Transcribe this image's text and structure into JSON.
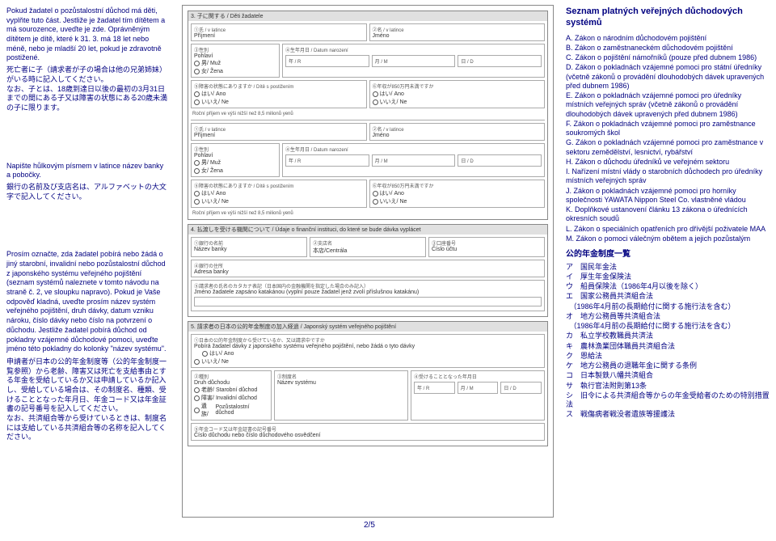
{
  "left": {
    "block1_cz": "Pokud žadatel o pozůstalostní důchod má děti, vyplňte tuto část. Jestliže je žadatel tím dítětem a má sourozence, uveďte je zde. Oprávněným dítětem je dítě, které k 31. 3. má 18 let nebo méně, nebo je mladší 20 let, pokud je zdravotně postižené.",
    "block1_jp": "死亡者に子（請求者が子の場合は他の兄弟姉妹）がいる時に記入してください。\nなお、子とは、18歳到達日以後の最初の3月31日までの間にある子又は障害の状態にある20歳未満の子に限ります。",
    "block2_cz": "Napište hůlkovým písmem v latince název banky a pobočky.",
    "block2_jp": "銀行の名前及び支店名は、アルファベットの大文字で記入してください。",
    "block3_cz": "Prosím označte, zda žadatel pobírá nebo žádá o jiný starobní, invalidní nebo pozůstalostní důchod z japonského systému veřejného pojištění (seznam systémů naleznete v tomto návodu na straně č. 2, ve sloupku napravo). Pokud je Vaše odpověď kladná, uveďte prosím název systém veřejného pojištění, druh dávky, datum vzniku nároku, číslo dávky nebo číslo na potvrzení o důchodu. Jestliže žadatel pobírá důchod od pokladny vzájemné důchodové pomoci, uveďte jméno této pokladny do kolonky \"název systému\".",
    "block3_jp": "申請者が日本の公的年金制度等（公的年金制度一覧参照）から老齢、障害又は死亡を支給事由とする年金を受給しているか又は申請しているか記入し、受給している場合は、その制度名、種類、受けることとなった年月日、年金コード又は年金証書の記号番号を記入してください。\nなお、共済組合等から受けているときは、制度名には支給している共済組合等の名称を記入してください。"
  },
  "center": {
    "sec3_header": "3. 子に関する / Děti žadatele",
    "lbl_shi": "①氏",
    "lbl_name_r": " / v latince",
    "lbl_mei": "②名",
    "lbl_prijmeni": "Příjmení",
    "lbl_jmeno": "Jméno",
    "lbl_sex": "③性別",
    "lbl_pohlavi": "Pohlaví",
    "lbl_muz": "Muž",
    "lbl_zena": "Žena",
    "lbl_dob": "④生年月日 / Datum narození",
    "lbl_y": "年 / R",
    "lbl_m": "月 / M",
    "lbl_d": "日 / D",
    "lbl_disab": "⑤障害の状態にありますか / Dítě s postižením",
    "lbl_ano": "Ano",
    "lbl_ne": "Ne",
    "lbl_income": "⑥年収が850万円未満ですか",
    "lbl_income_cz": "Roční příjem ve výši nižší než 8,5 milionů yenů",
    "sec4_header": "4. 払渡しを受ける機関について / Údaje o finanční instituci, do které se bude dávka vyplácet",
    "lbl_bank": "①銀行の名前",
    "lbl_bank_cz": "Název banky",
    "lbl_branch": "②支店名",
    "lbl_centrala": "Centrála",
    "lbl_acct": "③口座番号",
    "lbl_acct_cz": "Číslo účtu",
    "lbl_addr": "④銀行の住所",
    "lbl_addr_cz": "Adresa banky",
    "lbl_katakana": "⑤請求者の氏名のカタカナ表記（日本国内の金融機関を指定した場合のみ記入）",
    "lbl_katakana_cz": "Jméno žadatele zapsáno katakánou (vyplní pouze žadatel jenž zvolí příslušnou katakánu)",
    "sec5_header": "5. 請求者の日本の公的年金制度の加入経過 / Japonský systém veřejného pojištění",
    "lbl_pension": "①日本の公的年金制度から受けているか、又は請求中ですか",
    "lbl_pension_cz": "Pobírá žadatel dávky z japonského systému veřejného pojištění, nebo žádá o tyto dávky",
    "lbl_druh": "Druh důchodu",
    "lbl_system": "③制度名",
    "lbl_system_cz": "Název systému",
    "lbl_date": "④受けることとなった年月日",
    "lbl_code": "⑤年金コード又は年金証書の記号番号",
    "lbl_code_cz": "Číslo důchodu nebo číslo důchodového osvědčení",
    "lbl_stari": "Starobní důchod",
    "lbl_inval": "Invalidní důchod",
    "lbl_pozust": "Pozůstalostní důchod"
  },
  "right": {
    "title": "Seznam platných veřejných důchodových systémů",
    "items": [
      "A. Zákon o národním důchodovém pojištění",
      "B. Zákon o zaměstnaneckém důchodovém pojištění",
      "C. Zákon o pojištění námořníků (pouze před dubnem 1986)",
      "D. Zákon o pokladnách vzájemné pomoci pro státní úředníky (včetně zákonů o provádění dlouhodobých dávek upravených před dubnem 1986)",
      "E. Zákon o pokladnách vzájemné pomoci pro úředníky místních veřejných správ (včetně zákonů o provádění dlouhodobých dávek upravených před dubnem 1986)",
      "F. Zákon o pokladnách vzájemné pomoci pro zaměstnance soukromých škol",
      "G. Zákon o pokladnách vzájemné pomoci pro zaměstnance v sektoru zemědělství, lesnictví, rybářství",
      "H. Zákon o důchodu úředníků ve veřejném sektoru",
      "I. Nařízení místní vlády o starobních důchodech pro úředníky místních veřejných správ",
      "J. Zákon o pokladnách vzájemné pomoci pro horníky společnosti YAWATA Nippon Steel Co. vlastněné vládou",
      "K. Doplňkové ustanovení článku 13 zákona o úřednících okresních soudů",
      "L. Zákon o speciálních opatřeních pro dřívější poživatele MAA",
      "M. Zákon o pomoci válečným obětem a jejich pozůstalým"
    ],
    "jp_title": "公的年金制度一覧",
    "jp_items": [
      "ア　国民年金法",
      "イ　厚生年金保険法",
      "ウ　船員保険法（1986年4月以後を除く）",
      "エ　国家公務員共済組合法",
      "　（1986年4月前の長期給付に関する施行法を含む）",
      "オ　地方公務員等共済組合法",
      "　（1986年4月前の長期給付に関する施行法を含む）",
      "カ　私立学校教職員共済法",
      "キ　農林漁業団体職員共済組合法",
      "ク　恩給法",
      "ケ　地方公務員の退職年金に関する条例",
      "コ　日本製鉄八幡共済組合",
      "サ　執行官法附則第13条",
      "シ　旧令による共済組合等からの年金受給者のための特別措置法",
      "ス　戦傷病者戦没者遺族等援護法"
    ]
  },
  "page": "2/5"
}
